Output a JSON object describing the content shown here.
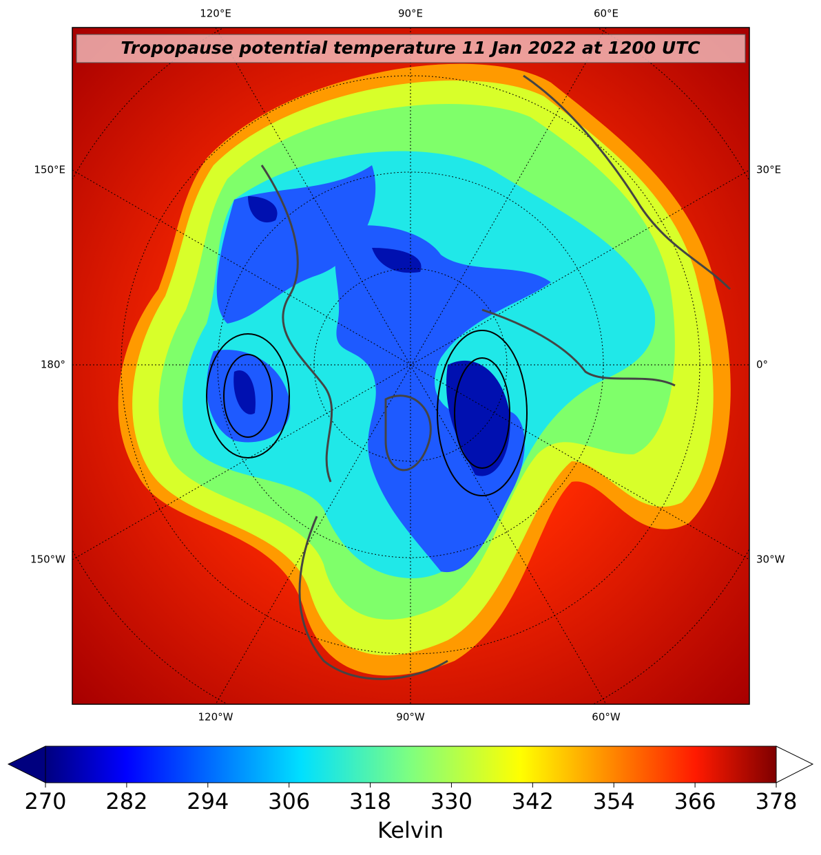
{
  "title": "Tropopause potential temperature 11 Jan 2022 at 1200 UTC",
  "map": {
    "top_labels": [
      "120°E",
      "90°E",
      "60°E"
    ],
    "bottom_labels": [
      "120°W",
      "90°W",
      "60°W"
    ],
    "left_labels": [
      "150°E",
      "180°",
      "150°W"
    ],
    "right_labels": [
      "30°E",
      "0°",
      "30°W"
    ]
  },
  "colorbar": {
    "range": [
      270,
      378
    ],
    "ticks": [
      270,
      282,
      294,
      306,
      318,
      330,
      342,
      354,
      366,
      378
    ],
    "label": "Kelvin"
  }
}
